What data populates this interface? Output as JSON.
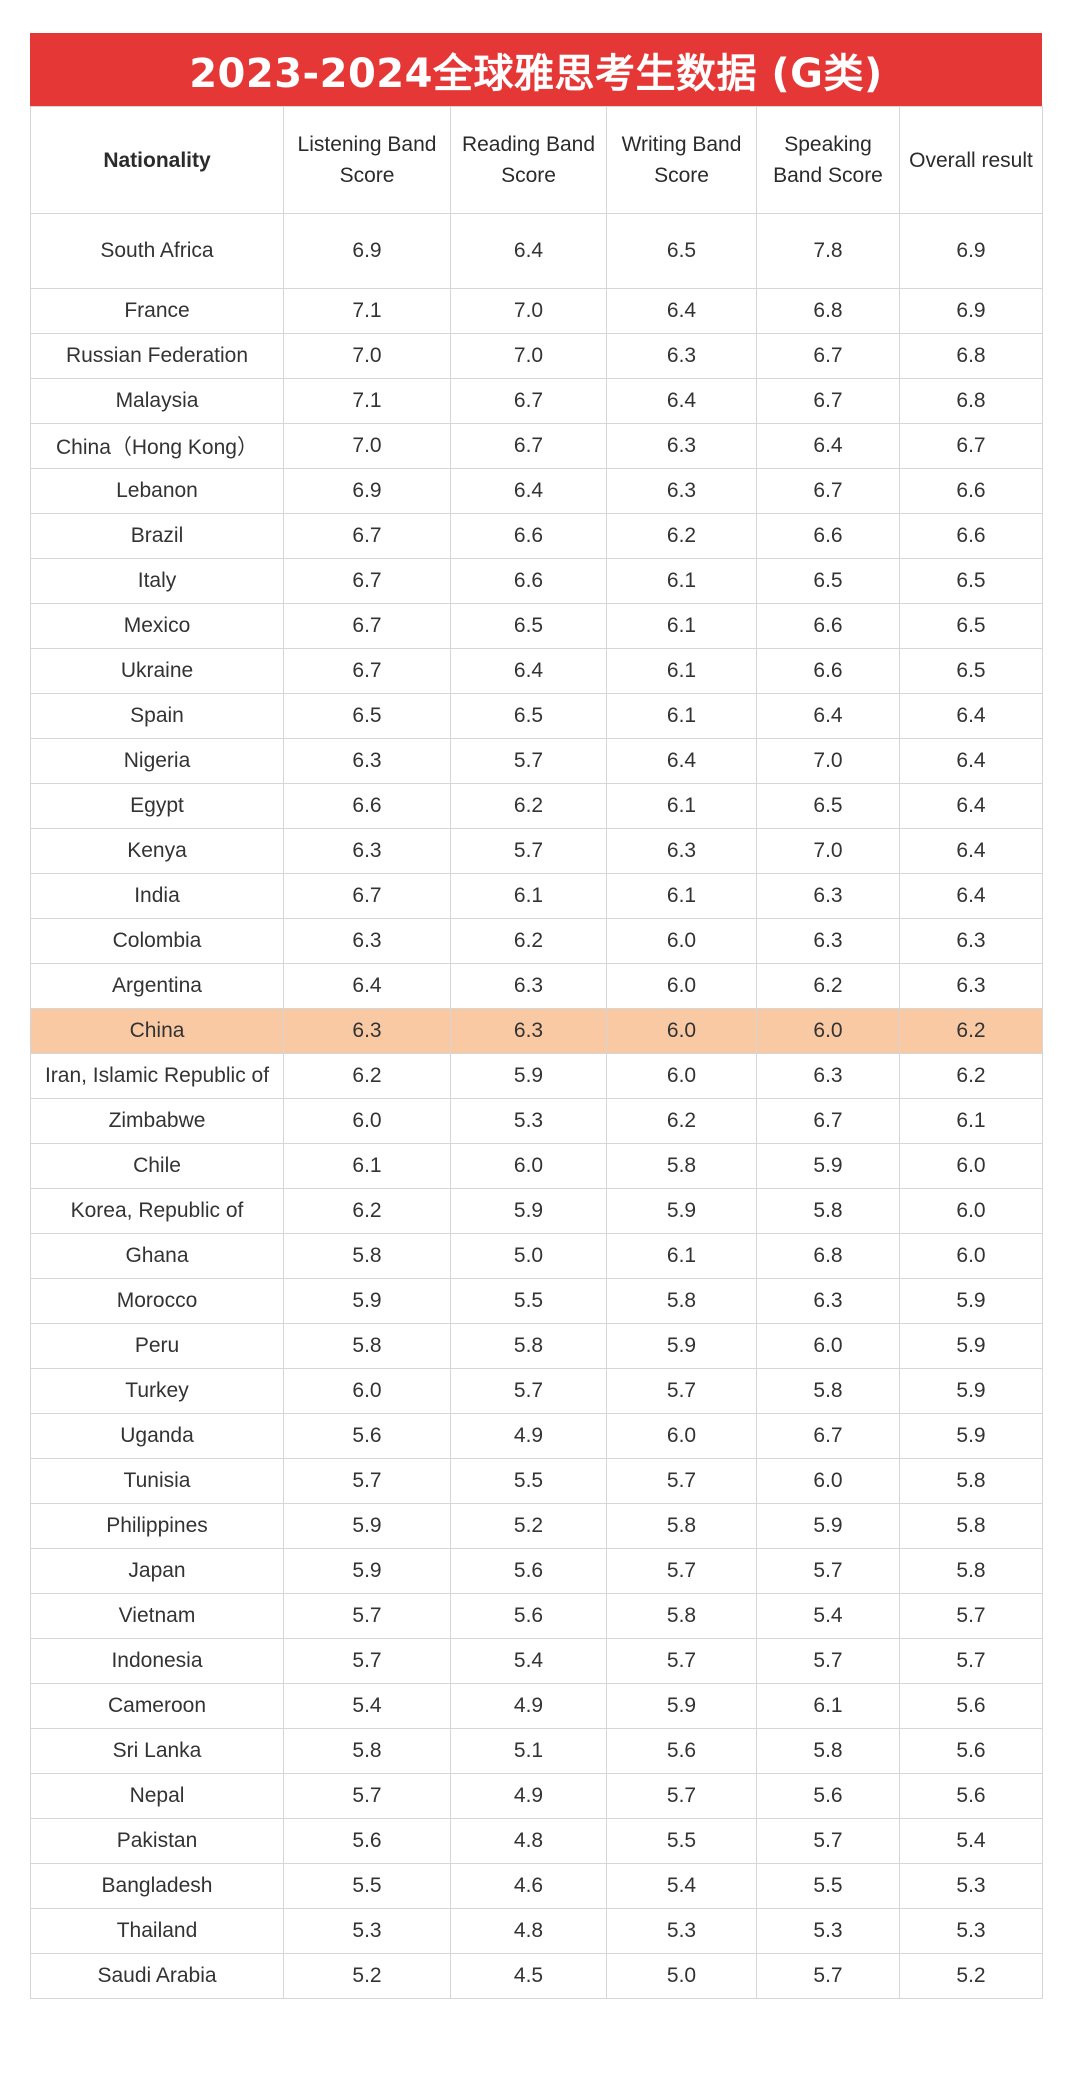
{
  "title": "2023-2024全球雅思考生数据 (G类)",
  "headers": [
    "Nationality",
    "Listening Band Score",
    "Reading Band Score",
    "Writing Band Score",
    "Speaking Band Score",
    "Overall result"
  ],
  "highlight_color": "#f9c9a4",
  "title_color": "#e63737",
  "rows": [
    {
      "country": "South Africa",
      "listening": "6.9",
      "reading": "6.4",
      "writing": "6.5",
      "speaking": "7.8",
      "overall": "6.9"
    },
    {
      "country": "France",
      "listening": "7.1",
      "reading": "7.0",
      "writing": "6.4",
      "speaking": "6.8",
      "overall": "6.9"
    },
    {
      "country": "Russian Federation",
      "listening": "7.0",
      "reading": "7.0",
      "writing": "6.3",
      "speaking": "6.7",
      "overall": "6.8"
    },
    {
      "country": "Malaysia",
      "listening": "7.1",
      "reading": "6.7",
      "writing": "6.4",
      "speaking": "6.7",
      "overall": "6.8"
    },
    {
      "country": "China（Hong Kong）",
      "listening": "7.0",
      "reading": "6.7",
      "writing": "6.3",
      "speaking": "6.4",
      "overall": "6.7"
    },
    {
      "country": "Lebanon",
      "listening": "6.9",
      "reading": "6.4",
      "writing": "6.3",
      "speaking": "6.7",
      "overall": "6.6"
    },
    {
      "country": "Brazil",
      "listening": "6.7",
      "reading": "6.6",
      "writing": "6.2",
      "speaking": "6.6",
      "overall": "6.6"
    },
    {
      "country": "Italy",
      "listening": "6.7",
      "reading": "6.6",
      "writing": "6.1",
      "speaking": "6.5",
      "overall": "6.5"
    },
    {
      "country": "Mexico",
      "listening": "6.7",
      "reading": "6.5",
      "writing": "6.1",
      "speaking": "6.6",
      "overall": "6.5"
    },
    {
      "country": "Ukraine",
      "listening": "6.7",
      "reading": "6.4",
      "writing": "6.1",
      "speaking": "6.6",
      "overall": "6.5"
    },
    {
      "country": "Spain",
      "listening": "6.5",
      "reading": "6.5",
      "writing": "6.1",
      "speaking": "6.4",
      "overall": "6.4"
    },
    {
      "country": "Nigeria",
      "listening": "6.3",
      "reading": "5.7",
      "writing": "6.4",
      "speaking": "7.0",
      "overall": "6.4"
    },
    {
      "country": "Egypt",
      "listening": "6.6",
      "reading": "6.2",
      "writing": "6.1",
      "speaking": "6.5",
      "overall": "6.4"
    },
    {
      "country": "Kenya",
      "listening": "6.3",
      "reading": "5.7",
      "writing": "6.3",
      "speaking": "7.0",
      "overall": "6.4"
    },
    {
      "country": "India",
      "listening": "6.7",
      "reading": "6.1",
      "writing": "6.1",
      "speaking": "6.3",
      "overall": "6.4"
    },
    {
      "country": "Colombia",
      "listening": "6.3",
      "reading": "6.2",
      "writing": "6.0",
      "speaking": "6.3",
      "overall": "6.3"
    },
    {
      "country": "Argentina",
      "listening": "6.4",
      "reading": "6.3",
      "writing": "6.0",
      "speaking": "6.2",
      "overall": "6.3"
    },
    {
      "country": "China",
      "listening": "6.3",
      "reading": "6.3",
      "writing": "6.0",
      "speaking": "6.0",
      "overall": "6.2",
      "highlight": true
    },
    {
      "country": "Iran, Islamic Republic of",
      "listening": "6.2",
      "reading": "5.9",
      "writing": "6.0",
      "speaking": "6.3",
      "overall": "6.2"
    },
    {
      "country": "Zimbabwe",
      "listening": "6.0",
      "reading": "5.3",
      "writing": "6.2",
      "speaking": "6.7",
      "overall": "6.1"
    },
    {
      "country": "Chile",
      "listening": "6.1",
      "reading": "6.0",
      "writing": "5.8",
      "speaking": "5.9",
      "overall": "6.0"
    },
    {
      "country": "Korea, Republic of",
      "listening": "6.2",
      "reading": "5.9",
      "writing": "5.9",
      "speaking": "5.8",
      "overall": "6.0"
    },
    {
      "country": "Ghana",
      "listening": "5.8",
      "reading": "5.0",
      "writing": "6.1",
      "speaking": "6.8",
      "overall": "6.0"
    },
    {
      "country": "Morocco",
      "listening": "5.9",
      "reading": "5.5",
      "writing": "5.8",
      "speaking": "6.3",
      "overall": "5.9"
    },
    {
      "country": "Peru",
      "listening": "5.8",
      "reading": "5.8",
      "writing": "5.9",
      "speaking": "6.0",
      "overall": "5.9"
    },
    {
      "country": "Turkey",
      "listening": "6.0",
      "reading": "5.7",
      "writing": "5.7",
      "speaking": "5.8",
      "overall": "5.9"
    },
    {
      "country": "Uganda",
      "listening": "5.6",
      "reading": "4.9",
      "writing": "6.0",
      "speaking": "6.7",
      "overall": "5.9"
    },
    {
      "country": "Tunisia",
      "listening": "5.7",
      "reading": "5.5",
      "writing": "5.7",
      "speaking": "6.0",
      "overall": "5.8"
    },
    {
      "country": "Philippines",
      "listening": "5.9",
      "reading": "5.2",
      "writing": "5.8",
      "speaking": "5.9",
      "overall": "5.8"
    },
    {
      "country": "Japan",
      "listening": "5.9",
      "reading": "5.6",
      "writing": "5.7",
      "speaking": "5.7",
      "overall": "5.8"
    },
    {
      "country": "Vietnam",
      "listening": "5.7",
      "reading": "5.6",
      "writing": "5.8",
      "speaking": "5.4",
      "overall": "5.7"
    },
    {
      "country": "Indonesia",
      "listening": "5.7",
      "reading": "5.4",
      "writing": "5.7",
      "speaking": "5.7",
      "overall": "5.7"
    },
    {
      "country": "Cameroon",
      "listening": "5.4",
      "reading": "4.9",
      "writing": "5.9",
      "speaking": "6.1",
      "overall": "5.6"
    },
    {
      "country": "Sri Lanka",
      "listening": "5.8",
      "reading": "5.1",
      "writing": "5.6",
      "speaking": "5.8",
      "overall": "5.6"
    },
    {
      "country": "Nepal",
      "listening": "5.7",
      "reading": "4.9",
      "writing": "5.7",
      "speaking": "5.6",
      "overall": "5.6"
    },
    {
      "country": "Pakistan",
      "listening": "5.6",
      "reading": "4.8",
      "writing": "5.5",
      "speaking": "5.7",
      "overall": "5.4"
    },
    {
      "country": "Bangladesh",
      "listening": "5.5",
      "reading": "4.6",
      "writing": "5.4",
      "speaking": "5.5",
      "overall": "5.3"
    },
    {
      "country": "Thailand",
      "listening": "5.3",
      "reading": "4.8",
      "writing": "5.3",
      "speaking": "5.3",
      "overall": "5.3"
    },
    {
      "country": "Saudi Arabia",
      "listening": "5.2",
      "reading": "4.5",
      "writing": "5.0",
      "speaking": "5.7",
      "overall": "5.2"
    }
  ]
}
